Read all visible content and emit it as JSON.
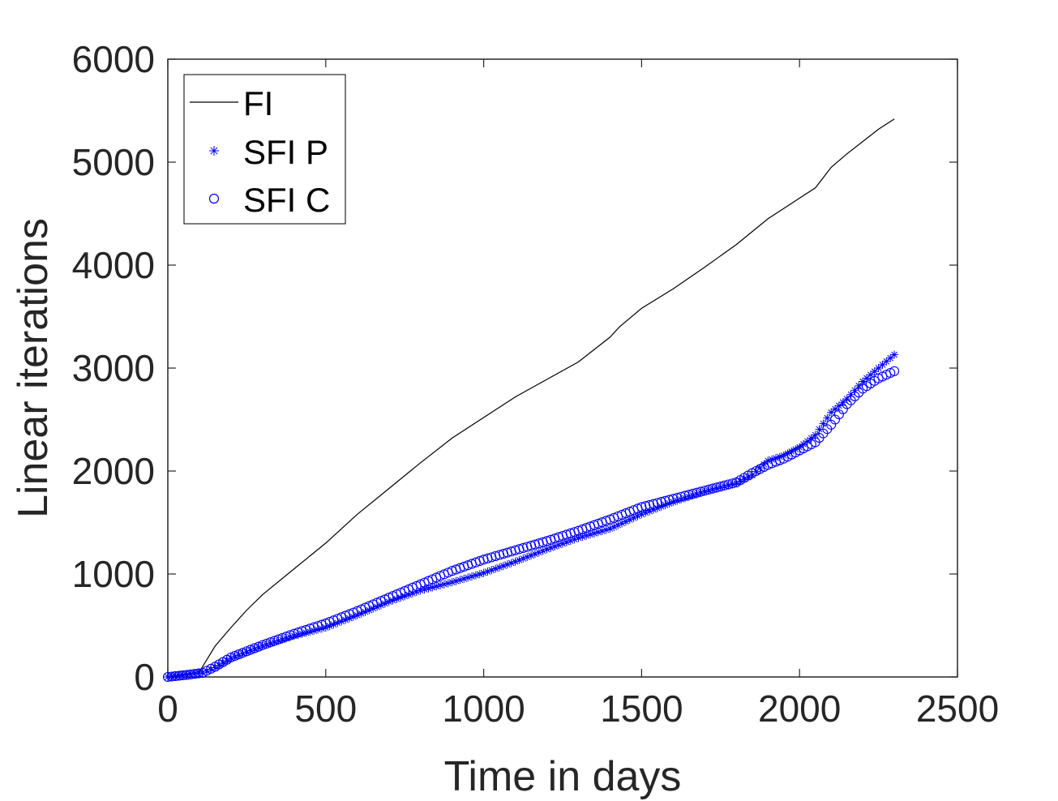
{
  "chart_data": {
    "type": "line",
    "xlabel": "Time in days",
    "ylabel": "Linear iterations",
    "xlim": [
      0,
      2500
    ],
    "ylim": [
      0,
      6000
    ],
    "xticks": [
      "0",
      "500",
      "1000",
      "1500",
      "2000",
      "2500"
    ],
    "yticks": [
      "0",
      "1000",
      "2000",
      "3000",
      "4000",
      "5000",
      "6000"
    ],
    "grid": false,
    "legend_position": "top-left",
    "series": [
      {
        "name": "FI",
        "style": "line",
        "color": "#000000",
        "x": [
          0,
          100,
          150,
          200,
          250,
          300,
          400,
          500,
          600,
          700,
          800,
          900,
          1000,
          1100,
          1200,
          1300,
          1400,
          1430,
          1500,
          1600,
          1700,
          1800,
          1900,
          2000,
          2050,
          2100,
          2150,
          2200,
          2250,
          2300
        ],
        "y": [
          0,
          50,
          300,
          480,
          650,
          800,
          1050,
          1300,
          1580,
          1830,
          2080,
          2320,
          2520,
          2720,
          2890,
          3060,
          3300,
          3400,
          3580,
          3770,
          3980,
          4200,
          4450,
          4650,
          4750,
          4950,
          5080,
          5200,
          5320,
          5420
        ]
      },
      {
        "name": "SFI P",
        "style": "marker-star",
        "color": "#0000ff",
        "x": [
          0,
          60,
          110,
          150,
          200,
          300,
          400,
          500,
          600,
          700,
          800,
          900,
          1000,
          1100,
          1200,
          1300,
          1400,
          1500,
          1600,
          1700,
          1800,
          1850,
          1900,
          1950,
          2000,
          2050,
          2100,
          2150,
          2200,
          2250,
          2300
        ],
        "y": [
          0,
          20,
          40,
          90,
          180,
          300,
          400,
          480,
          600,
          730,
          840,
          920,
          1010,
          1120,
          1240,
          1350,
          1440,
          1580,
          1700,
          1800,
          1880,
          1960,
          2100,
          2150,
          2230,
          2350,
          2570,
          2700,
          2870,
          3000,
          3130
        ]
      },
      {
        "name": "SFI C",
        "style": "marker-circle",
        "color": "#0000ff",
        "x": [
          0,
          60,
          110,
          150,
          200,
          300,
          400,
          500,
          600,
          700,
          800,
          900,
          1000,
          1100,
          1200,
          1300,
          1400,
          1500,
          1600,
          1700,
          1800,
          1850,
          1900,
          1950,
          2000,
          2050,
          2100,
          2150,
          2200,
          2250,
          2300
        ],
        "y": [
          0,
          20,
          40,
          100,
          190,
          310,
          420,
          520,
          640,
          770,
          900,
          1030,
          1140,
          1230,
          1320,
          1420,
          1530,
          1650,
          1730,
          1810,
          1890,
          1980,
          2060,
          2120,
          2200,
          2280,
          2450,
          2650,
          2800,
          2900,
          2970
        ]
      }
    ]
  }
}
